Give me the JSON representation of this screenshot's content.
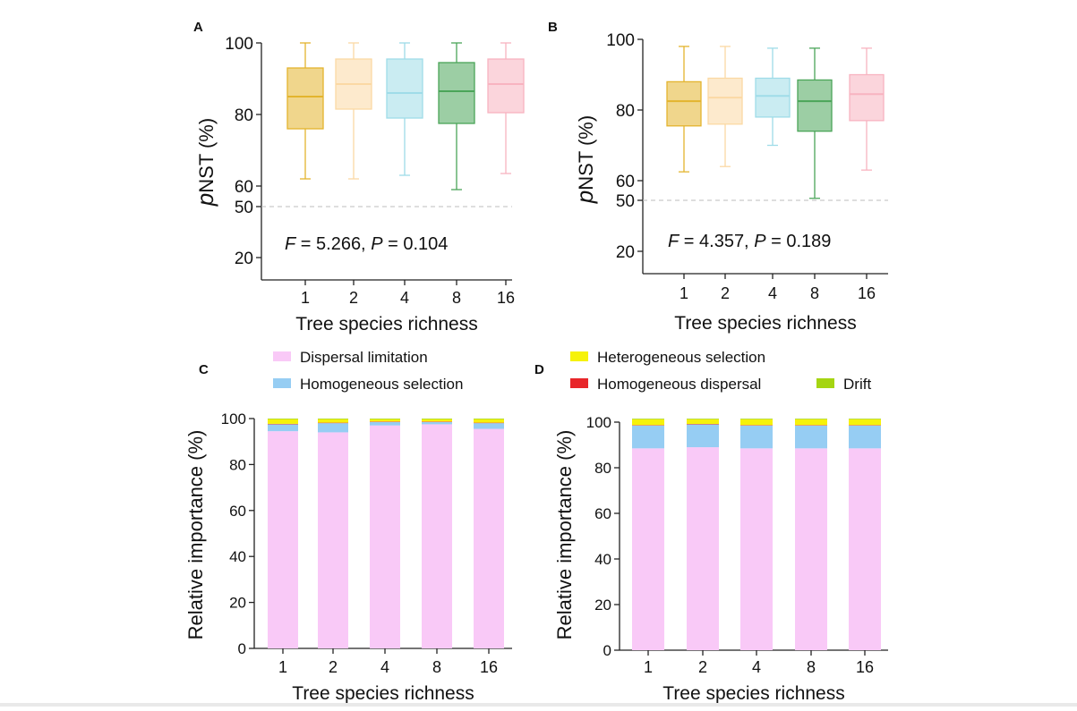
{
  "colors": {
    "c1": "#e3b42e",
    "c2": "#fbd9a4",
    "c4": "#9fdce8",
    "c8": "#4ba559",
    "c16": "#f8b3c0",
    "dispersal_limitation": "#f9c9f7",
    "homogeneous_selection": "#96cdf3",
    "heterogeneous_selection": "#f6f20a",
    "homogeneous_dispersal": "#e8262a",
    "drift": "#a5d512",
    "dashed_line": "#bdbdbd",
    "axis": "#222222"
  },
  "chart_data": [
    {
      "panel": "A",
      "type": "boxplot",
      "categories": [
        "1",
        "2",
        "4",
        "8",
        "16"
      ],
      "xlabel": "Tree species richness",
      "ylabel_italic": "p",
      "ylabel_rest": "NST (%)",
      "yticks": [
        "20",
        "50",
        "60",
        "80",
        "100"
      ],
      "ylim": [
        20,
        100
      ],
      "broken_axis": true,
      "reference_line": 50,
      "stats": {
        "F_label": "F",
        "F_text": " = 5.266, ",
        "P_label": "P",
        "P_text": " = 0.104"
      },
      "boxes": [
        {
          "min": 62,
          "q1": 76,
          "median": 85,
          "q3": 93,
          "max": 100
        },
        {
          "min": 62,
          "q1": 81.5,
          "median": 88.5,
          "q3": 95.5,
          "max": 100
        },
        {
          "min": 63,
          "q1": 79,
          "median": 86,
          "q3": 95.5,
          "max": 100
        },
        {
          "min": 59,
          "q1": 77.5,
          "median": 86.5,
          "q3": 94.5,
          "max": 100
        },
        {
          "min": 63.5,
          "q1": 80.5,
          "median": 88.5,
          "q3": 95.5,
          "max": 100
        }
      ]
    },
    {
      "panel": "B",
      "type": "boxplot",
      "categories": [
        "1",
        "2",
        "4",
        "8",
        "16"
      ],
      "xlabel": "Tree species richness",
      "ylabel_italic": "p",
      "ylabel_rest": "NST (%)",
      "yticks": [
        "20",
        "50",
        "60",
        "80",
        "100"
      ],
      "ylim": [
        20,
        100
      ],
      "broken_axis": true,
      "reference_line": 50,
      "stats": {
        "F_label": "F",
        "F_text": " = 4.357, ",
        "P_label": "P",
        "P_text": " = 0.189"
      },
      "boxes": [
        {
          "min": 62.5,
          "q1": 75.5,
          "median": 82.5,
          "q3": 88,
          "max": 98
        },
        {
          "min": 64,
          "q1": 76,
          "median": 83.5,
          "q3": 89,
          "max": 98
        },
        {
          "min": 70,
          "q1": 78,
          "median": 84,
          "q3": 89,
          "max": 97.5
        },
        {
          "min": 55,
          "q1": 74,
          "median": 82.5,
          "q3": 88.5,
          "max": 97.5
        },
        {
          "min": 63,
          "q1": 77,
          "median": 84.5,
          "q3": 90,
          "max": 97.5
        }
      ]
    },
    {
      "panel": "C",
      "type": "stacked_bar",
      "categories": [
        "1",
        "2",
        "4",
        "8",
        "16"
      ],
      "xlabel": "Tree species richness",
      "ylabel": "Relative importance (%)",
      "yticks": [
        "0",
        "20",
        "40",
        "60",
        "80",
        "100"
      ],
      "ylim": [
        0,
        100
      ],
      "legend": [
        "Dispersal limitation",
        "Homogeneous selection"
      ],
      "series": [
        {
          "name": "Dispersal limitation",
          "color": "#f9c9f7",
          "values": [
            94.5,
            94,
            97,
            97.5,
            95.5
          ]
        },
        {
          "name": "Homogeneous selection",
          "color": "#96cdf3",
          "values": [
            3,
            4,
            1.5,
            1,
            2.5
          ]
        },
        {
          "name": "Homogeneous dispersal",
          "color": "#e8262a",
          "values": [
            0.2,
            0.2,
            0.2,
            0.2,
            0.2
          ]
        },
        {
          "name": "Heterogeneous selection",
          "color": "#f6f20a",
          "values": [
            2,
            1.5,
            1,
            1,
            1.5
          ]
        },
        {
          "name": "Drift",
          "color": "#a5d512",
          "values": [
            0.3,
            0.3,
            0.3,
            0.3,
            0.3
          ]
        }
      ]
    },
    {
      "panel": "D",
      "type": "stacked_bar",
      "categories": [
        "1",
        "2",
        "4",
        "8",
        "16"
      ],
      "xlabel": "Tree species richness",
      "ylabel": "Relative importance (%)",
      "yticks": [
        "0",
        "20",
        "40",
        "60",
        "80",
        "100"
      ],
      "ylim": [
        0,
        100
      ],
      "legend": [
        "Heterogeneous selection",
        "Homogeneous dispersal",
        "Drift"
      ],
      "series": [
        {
          "name": "Dispersal limitation",
          "color": "#f9c9f7",
          "values": [
            88.5,
            89,
            88.5,
            88.5,
            88.5
          ]
        },
        {
          "name": "Homogeneous selection",
          "color": "#96cdf3",
          "values": [
            10,
            10,
            10,
            10,
            10
          ]
        },
        {
          "name": "Homogeneous dispersal",
          "color": "#e8262a",
          "values": [
            0.2,
            0.2,
            0.2,
            0.2,
            0.2
          ]
        },
        {
          "name": "Heterogeneous selection",
          "color": "#f6f20a",
          "values": [
            2.5,
            2,
            2.5,
            2.5,
            2.5
          ]
        },
        {
          "name": "Drift",
          "color": "#a5d512",
          "values": [
            0.3,
            0.3,
            0.3,
            0.3,
            0.3
          ]
        }
      ]
    }
  ]
}
